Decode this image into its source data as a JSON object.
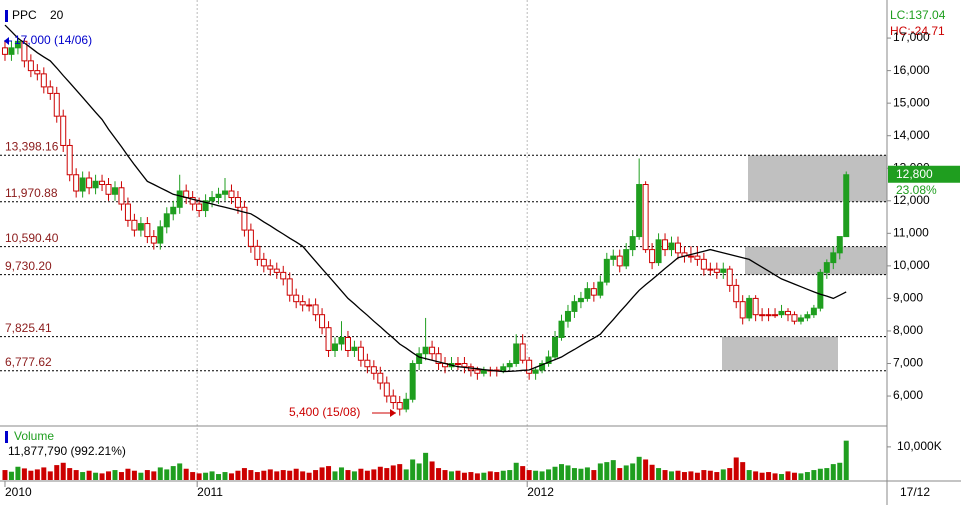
{
  "chart_data": {
    "type": "candlestick",
    "symbol": "PPC",
    "up_color": "#1f9e1f",
    "down_color": "#cc0000",
    "candles": [
      [
        16700,
        16900,
        16300,
        16500
      ],
      [
        16500,
        16900,
        16300,
        16700
      ],
      [
        16700,
        17000,
        16500,
        16900
      ],
      [
        16900,
        17000,
        16100,
        16300
      ],
      [
        16300,
        16500,
        15800,
        16000
      ],
      [
        16000,
        16200,
        15700,
        15900
      ],
      [
        15900,
        16100,
        15300,
        15500
      ],
      [
        15500,
        15700,
        15100,
        15300
      ],
      [
        15300,
        15500,
        14400,
        14600
      ],
      [
        14600,
        14800,
        13500,
        13700
      ],
      [
        13700,
        13900,
        12600,
        12800
      ],
      [
        12800,
        13000,
        12100,
        12300
      ],
      [
        12300,
        12900,
        12100,
        12700
      ],
      [
        12700,
        12900,
        12200,
        12400
      ],
      [
        12400,
        12800,
        12200,
        12600
      ],
      [
        12600,
        12800,
        12300,
        12500
      ],
      [
        12500,
        12700,
        12000,
        12200
      ],
      [
        12200,
        12600,
        12000,
        12400
      ],
      [
        12400,
        12600,
        11700,
        11900
      ],
      [
        11900,
        12100,
        11200,
        11400
      ],
      [
        11400,
        11600,
        10900,
        11100
      ],
      [
        11100,
        11500,
        10900,
        11300
      ],
      [
        11300,
        11500,
        10700,
        10900
      ],
      [
        10900,
        11100,
        10500,
        10700
      ],
      [
        10700,
        11400,
        10500,
        11200
      ],
      [
        11200,
        11800,
        11000,
        11600
      ],
      [
        11600,
        12000,
        11400,
        11800
      ],
      [
        11800,
        12800,
        11600,
        12300
      ],
      [
        12300,
        12500,
        11900,
        12100
      ],
      [
        12100,
        12300,
        11700,
        11900
      ],
      [
        11900,
        12100,
        11500,
        11700
      ],
      [
        11700,
        12200,
        11500,
        12000
      ],
      [
        12000,
        12300,
        11800,
        12100
      ],
      [
        12100,
        12400,
        11900,
        12200
      ],
      [
        12200,
        12700,
        12000,
        12300
      ],
      [
        12300,
        12500,
        11900,
        12100
      ],
      [
        12100,
        12300,
        11600,
        11800
      ],
      [
        11800,
        12000,
        10900,
        11100
      ],
      [
        11100,
        11300,
        10400,
        10600
      ],
      [
        10600,
        10800,
        10000,
        10200
      ],
      [
        10200,
        10400,
        9800,
        10000
      ],
      [
        10000,
        10200,
        9700,
        9900
      ],
      [
        9900,
        10100,
        9600,
        9800
      ],
      [
        9800,
        10000,
        9400,
        9600
      ],
      [
        9600,
        9800,
        8900,
        9100
      ],
      [
        9100,
        9300,
        8700,
        8900
      ],
      [
        8900,
        9100,
        8600,
        8800
      ],
      [
        8800,
        9000,
        8600,
        8800
      ],
      [
        8800,
        9000,
        8300,
        8500
      ],
      [
        8500,
        8700,
        7900,
        8100
      ],
      [
        8100,
        8300,
        7200,
        7400
      ],
      [
        7400,
        7800,
        7200,
        7600
      ],
      [
        7600,
        8300,
        7400,
        7800
      ],
      [
        7800,
        8000,
        7200,
        7400
      ],
      [
        7400,
        7700,
        7200,
        7500
      ],
      [
        7500,
        7700,
        6900,
        7100
      ],
      [
        7100,
        7300,
        6700,
        6900
      ],
      [
        6900,
        7100,
        6500,
        6700
      ],
      [
        6700,
        6900,
        6200,
        6400
      ],
      [
        6400,
        6600,
        5800,
        6000
      ],
      [
        6000,
        6200,
        5600,
        5800
      ],
      [
        5800,
        6000,
        5400,
        5600
      ],
      [
        5600,
        6100,
        5500,
        5900
      ],
      [
        5900,
        7100,
        5800,
        7000
      ],
      [
        7000,
        7500,
        6800,
        7300
      ],
      [
        7300,
        8400,
        7100,
        7500
      ],
      [
        7500,
        7700,
        7100,
        7300
      ],
      [
        7300,
        7500,
        6800,
        7000
      ],
      [
        7000,
        7200,
        6700,
        6900
      ],
      [
        6900,
        7200,
        6800,
        7000
      ],
      [
        7000,
        7200,
        6800,
        7000
      ],
      [
        7000,
        7200,
        6700,
        6900
      ],
      [
        6900,
        7000,
        6600,
        6800
      ],
      [
        6800,
        6900,
        6500,
        6700
      ],
      [
        6700,
        6900,
        6600,
        6800
      ],
      [
        6800,
        6900,
        6600,
        6800
      ],
      [
        6800,
        6900,
        6600,
        6800
      ],
      [
        6800,
        7000,
        6700,
        6900
      ],
      [
        6900,
        7100,
        6800,
        7000
      ],
      [
        7000,
        7900,
        6900,
        7600
      ],
      [
        7600,
        7900,
        7000,
        7100
      ],
      [
        7100,
        7200,
        6500,
        6700
      ],
      [
        6700,
        6900,
        6500,
        6800
      ],
      [
        6800,
        7100,
        6700,
        7000
      ],
      [
        7000,
        7400,
        6900,
        7200
      ],
      [
        7200,
        8000,
        7100,
        7800
      ],
      [
        7800,
        8500,
        7700,
        8300
      ],
      [
        8300,
        8800,
        8100,
        8600
      ],
      [
        8600,
        9100,
        8400,
        8900
      ],
      [
        8900,
        9200,
        8700,
        9000
      ],
      [
        9000,
        9500,
        8900,
        9300
      ],
      [
        9300,
        9500,
        8900,
        9100
      ],
      [
        9100,
        9700,
        9000,
        9500
      ],
      [
        9500,
        10400,
        9400,
        10200
      ],
      [
        10200,
        10500,
        10000,
        10300
      ],
      [
        10300,
        10500,
        9800,
        10000
      ],
      [
        10000,
        10700,
        9900,
        10500
      ],
      [
        10500,
        11100,
        10300,
        10900
      ],
      [
        10900,
        13300,
        10800,
        12500
      ],
      [
        12500,
        12600,
        10400,
        10500
      ],
      [
        10500,
        10700,
        9900,
        10100
      ],
      [
        10100,
        11000,
        10000,
        10800
      ],
      [
        10800,
        11000,
        10300,
        10500
      ],
      [
        10500,
        10900,
        10300,
        10700
      ],
      [
        10700,
        10900,
        10200,
        10400
      ],
      [
        10400,
        10600,
        10100,
        10300
      ],
      [
        10300,
        10600,
        10100,
        10300
      ],
      [
        10300,
        10600,
        10000,
        10200
      ],
      [
        10200,
        10400,
        9700,
        9900
      ],
      [
        9900,
        10100,
        9700,
        9900
      ],
      [
        9900,
        10100,
        9600,
        9800
      ],
      [
        9800,
        10100,
        9600,
        9900
      ],
      [
        9900,
        10000,
        9200,
        9400
      ],
      [
        9400,
        9600,
        8700,
        8900
      ],
      [
        8900,
        9100,
        8200,
        8400
      ],
      [
        8400,
        9100,
        8300,
        9000
      ],
      [
        9000,
        9100,
        8300,
        8500
      ],
      [
        8500,
        8700,
        8300,
        8500
      ],
      [
        8500,
        8700,
        8300,
        8500
      ],
      [
        8500,
        8700,
        8400,
        8500
      ],
      [
        8500,
        8800,
        8400,
        8600
      ],
      [
        8600,
        8700,
        8300,
        8500
      ],
      [
        8500,
        8600,
        8200,
        8300
      ],
      [
        8300,
        8500,
        8200,
        8400
      ],
      [
        8400,
        8600,
        8300,
        8500
      ],
      [
        8500,
        8800,
        8400,
        8700
      ],
      [
        8700,
        9900,
        8600,
        9800
      ],
      [
        9800,
        10200,
        9600,
        10100
      ],
      [
        10100,
        10600,
        9900,
        10400
      ],
      [
        10400,
        10900,
        10200,
        10900
      ],
      [
        10900,
        12900,
        10900,
        12800
      ]
    ],
    "ma": {
      "name": "20",
      "color": "#000000",
      "values": [
        17400,
        17200,
        17000,
        16850,
        16700,
        16550,
        16420,
        16300,
        16080,
        15850,
        15630,
        15400,
        15180,
        14950,
        14720,
        14500,
        14200,
        13930,
        13660,
        13380,
        13110,
        12850,
        12600,
        12500,
        12400,
        12300,
        12200,
        12150,
        12100,
        12050,
        12000,
        11950,
        11900,
        11850,
        11800,
        11750,
        11700,
        11650,
        11600,
        11480,
        11350,
        11230,
        11100,
        10980,
        10850,
        10730,
        10600,
        10370,
        10140,
        9910,
        9690,
        9460,
        9230,
        9000,
        8830,
        8650,
        8480,
        8300,
        8130,
        7950,
        7780,
        7600,
        7470,
        7330,
        7200,
        7150,
        7100,
        7050,
        7000,
        6950,
        6900,
        6880,
        6860,
        6840,
        6810,
        6790,
        6770,
        6750,
        6760,
        6770,
        6790,
        6800,
        6880,
        6960,
        7040,
        7120,
        7200,
        7320,
        7430,
        7550,
        7670,
        7780,
        7900,
        8130,
        8350,
        8580,
        8800,
        9030,
        9250,
        9420,
        9580,
        9750,
        9920,
        10080,
        10250,
        10300,
        10350,
        10400,
        10450,
        10500,
        10450,
        10400,
        10350,
        10300,
        10250,
        10200,
        10080,
        9960,
        9840,
        9720,
        9600,
        9520,
        9440,
        9360,
        9280,
        9200,
        9130,
        9070,
        9000,
        9100,
        9200
      ]
    },
    "xlim": [
      -0.77,
      136.3
    ],
    "xticks": [
      {
        "value": 0,
        "label": "2010"
      },
      {
        "value": 29.7,
        "label": "2011"
      },
      {
        "value": 80.7,
        "label": "2012"
      }
    ],
    "last_date": "17/12",
    "ylim": [
      5110,
      18170
    ],
    "yticks": [
      {
        "value": 6000,
        "label": "6,000"
      },
      {
        "value": 7000,
        "label": "7,000"
      },
      {
        "value": 8000,
        "label": "8,000"
      },
      {
        "value": 9000,
        "label": "9,000"
      },
      {
        "value": 10000,
        "label": "10,000"
      },
      {
        "value": 11000,
        "label": "11,000"
      },
      {
        "value": 12000,
        "label": "12,000"
      },
      {
        "value": 13000,
        "label": "13,000"
      },
      {
        "value": 14000,
        "label": "14,000"
      },
      {
        "value": 15000,
        "label": "15,000"
      },
      {
        "value": 16000,
        "label": "16,000"
      },
      {
        "value": 17000,
        "label": "17,000"
      }
    ],
    "levels": [
      {
        "value": 13398.16,
        "label": "13,398.16"
      },
      {
        "value": 11970.88,
        "label": "11,970.88"
      },
      {
        "value": 10590.4,
        "label": "10,590.40"
      },
      {
        "value": 9730.2,
        "label": "9,730.20"
      },
      {
        "value": 7825.41,
        "label": "7,825.41"
      },
      {
        "value": 6777.62,
        "label": "6,777.62"
      }
    ],
    "zones": [
      {
        "low": 11970.88,
        "high": 13398.16
      },
      {
        "low": 9730.2,
        "high": 10590.4
      },
      {
        "low": 6777.62,
        "high": 7825.41
      }
    ],
    "annotations": [
      "17,000 (14/06)",
      "5,400 (15/08)"
    ],
    "last_label": "12,800",
    "last_change": "23.08%",
    "lc": "LC:137.04",
    "hc": "HC:-24.71",
    "volume": {
      "name": "Volume",
      "summary": "11,877,790 (992.21%)",
      "ylim": [
        0,
        15700000
      ],
      "yticks": [
        {
          "value": 10000000,
          "label": "10,000K"
        }
      ],
      "values": [
        3000000,
        2500000,
        4000000,
        3500000,
        2800000,
        3200000,
        3800000,
        2600000,
        4500000,
        5200000,
        3600000,
        3000000,
        2400000,
        2800000,
        2200000,
        2000000,
        2600000,
        3000000,
        2400000,
        3400000,
        2800000,
        2200000,
        3000000,
        2600000,
        3800000,
        3200000,
        4200000,
        5000000,
        3400000,
        2400000,
        2000000,
        2200000,
        2600000,
        1800000,
        2400000,
        2000000,
        2800000,
        3600000,
        3000000,
        2400000,
        2800000,
        3200000,
        2600000,
        3000000,
        2800000,
        3400000,
        2600000,
        2200000,
        3000000,
        3800000,
        4200000,
        2600000,
        3800000,
        3000000,
        2600000,
        3400000,
        2800000,
        3200000,
        4000000,
        3600000,
        4400000,
        4800000,
        3200000,
        6200000,
        5000000,
        8200000,
        5600000,
        3600000,
        3000000,
        2600000,
        2800000,
        2200000,
        2400000,
        2000000,
        2200000,
        2600000,
        2400000,
        2800000,
        3000000,
        5200000,
        4200000,
        3000000,
        2800000,
        2600000,
        3200000,
        4000000,
        4800000,
        4400000,
        3600000,
        3400000,
        3800000,
        3000000,
        5000000,
        5400000,
        6000000,
        3600000,
        4400000,
        5000000,
        7000000,
        6200000,
        4600000,
        3600000,
        3000000,
        2600000,
        2800000,
        2400000,
        2600000,
        2200000,
        3000000,
        2800000,
        2400000,
        3200000,
        3600000,
        6800000,
        5400000,
        3000000,
        2600000,
        2200000,
        2400000,
        2000000,
        1800000,
        2600000,
        2200000,
        2000000,
        2400000,
        3000000,
        3400000,
        3600000,
        4800000,
        5200000,
        11877790
      ]
    }
  }
}
